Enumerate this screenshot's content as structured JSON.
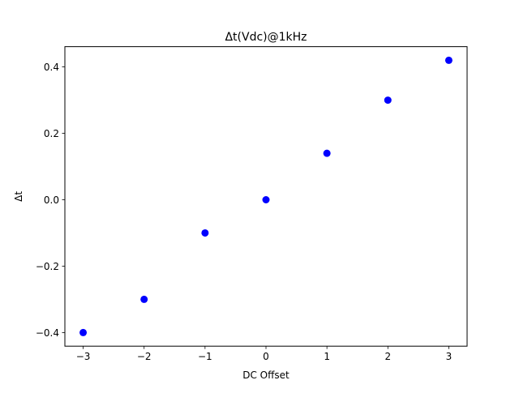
{
  "chart_data": {
    "type": "scatter",
    "title": "Δt(Vdc)@1kHz",
    "xlabel": "DC Offset",
    "ylabel": "Δt",
    "x": [
      -3,
      -2,
      -1,
      0,
      1,
      2,
      3
    ],
    "y": [
      -0.4,
      -0.3,
      -0.1,
      0.0,
      0.14,
      0.3,
      0.42
    ],
    "xlim": [
      -3.3,
      3.3
    ],
    "ylim": [
      -0.441,
      0.461
    ],
    "xticks": [
      -3,
      -2,
      -1,
      0,
      1,
      2,
      3
    ],
    "xtick_labels": [
      "−3",
      "−2",
      "−1",
      "0",
      "1",
      "2",
      "3"
    ],
    "yticks": [
      -0.4,
      -0.2,
      0.0,
      0.2,
      0.4
    ],
    "ytick_labels": [
      "−0.4",
      "−0.2",
      "0.0",
      "0.2",
      "0.4"
    ],
    "grid": false,
    "legend": "none",
    "marker_color": "#0000ff"
  }
}
